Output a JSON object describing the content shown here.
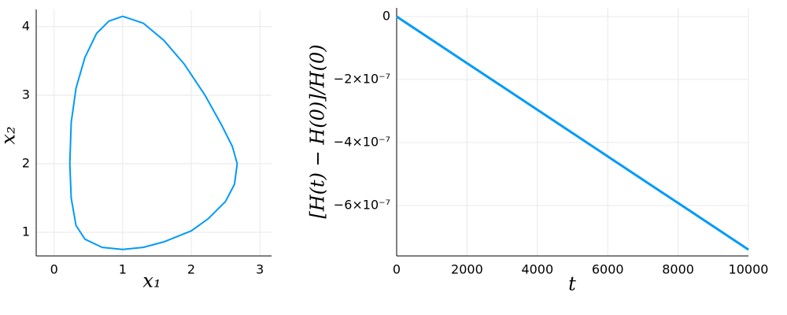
{
  "chart_data": [
    {
      "type": "line",
      "xlabel": "x₁",
      "ylabel": "x₂",
      "color": "#009af9",
      "x": [
        1.0,
        1.3,
        1.6,
        1.9,
        2.2,
        2.45,
        2.6,
        2.67,
        2.63,
        2.5,
        2.25,
        2.0,
        1.6,
        1.3,
        1.0,
        0.7,
        0.45,
        0.32,
        0.25,
        0.23,
        0.25,
        0.32,
        0.45,
        0.62,
        0.8,
        1.0
      ],
      "y": [
        4.15,
        4.05,
        3.8,
        3.45,
        3.0,
        2.55,
        2.25,
        2.0,
        1.7,
        1.45,
        1.2,
        1.02,
        0.86,
        0.78,
        0.75,
        0.78,
        0.9,
        1.1,
        1.5,
        2.0,
        2.6,
        3.1,
        3.55,
        3.9,
        4.08,
        4.15
      ],
      "xlim": [
        -0.26,
        3.17
      ],
      "ylim": [
        0.655,
        4.25
      ],
      "xticks": [
        0,
        1,
        2,
        3
      ],
      "yticks": [
        1,
        2,
        3,
        4
      ],
      "grid": true
    },
    {
      "type": "line",
      "xlabel": "t",
      "ylabel": "[H(t) − H(0)]/H(0)",
      "color": "#009af9",
      "x": [
        0,
        1000,
        2000,
        3000,
        4000,
        5000,
        6000,
        7000,
        8000,
        9000,
        10000
      ],
      "y": [
        0,
        -7.4e-08,
        -1.48e-07,
        -2.22e-07,
        -2.96e-07,
        -3.7e-07,
        -4.44e-07,
        -5.18e-07,
        -5.92e-07,
        -6.66e-07,
        -7.4e-07
      ],
      "xlim": [
        0,
        10000
      ],
      "ylim": [
        -7.6e-07,
        2.75e-08
      ],
      "xticks": [
        0,
        2000,
        4000,
        6000,
        8000,
        10000
      ],
      "yticks": [
        0,
        {
          "value": -2e-07,
          "label": "−2×10⁻⁷"
        },
        {
          "value": -4e-07,
          "label": "−4×10⁻⁷"
        },
        {
          "value": -6e-07,
          "label": "−6×10⁻⁷"
        }
      ],
      "grid": true
    }
  ]
}
